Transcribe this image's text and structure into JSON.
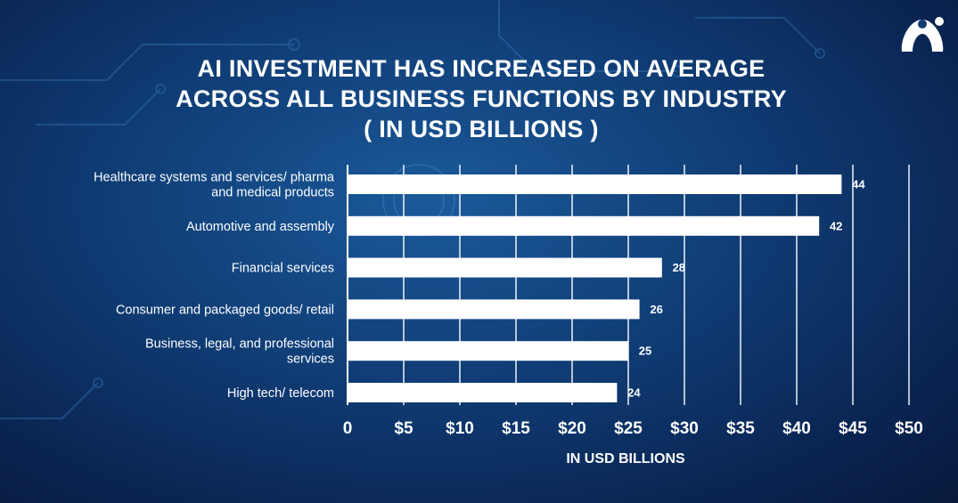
{
  "title_lines": [
    "AI INVESTMENT HAS INCREASED ON AVERAGE",
    "ACROSS ALL BUSINESS FUNCTIONS BY INDUSTRY",
    "( IN USD BILLIONS )"
  ],
  "logo": {
    "icon": "brand-logo-icon"
  },
  "colors": {
    "bar": "#ffffff",
    "grid": "#ffffff",
    "background": "#0f3b73"
  },
  "chart_data": {
    "type": "bar",
    "orientation": "horizontal",
    "title": "AI INVESTMENT HAS INCREASED ON AVERAGE ACROSS ALL BUSINESS FUNCTIONS BY INDUSTRY ( IN USD BILLIONS )",
    "categories": [
      [
        "Healthcare systems and services/ pharma",
        "and medical products"
      ],
      [
        "Automotive and assembly"
      ],
      [
        "Financial services"
      ],
      [
        "Consumer and packaged goods/ retail"
      ],
      [
        "Business, legal, and professional",
        "services"
      ],
      [
        "High tech/ telecom"
      ]
    ],
    "values": [
      44,
      42,
      28,
      26,
      25,
      24
    ],
    "value_labels": [
      "44",
      "42",
      "28",
      "26",
      "25",
      "24"
    ],
    "xlim": [
      0,
      50
    ],
    "xticks": [
      0,
      5,
      10,
      15,
      20,
      25,
      30,
      35,
      40,
      45,
      50
    ],
    "xtick_labels": [
      "0",
      "$5",
      "$10",
      "$15",
      "$20",
      "$25",
      "$30",
      "$35",
      "$40",
      "$45",
      "$50"
    ],
    "xlabel": "IN USD BILLIONS",
    "ylabel": "",
    "grid": "vertical",
    "legend": "none"
  }
}
